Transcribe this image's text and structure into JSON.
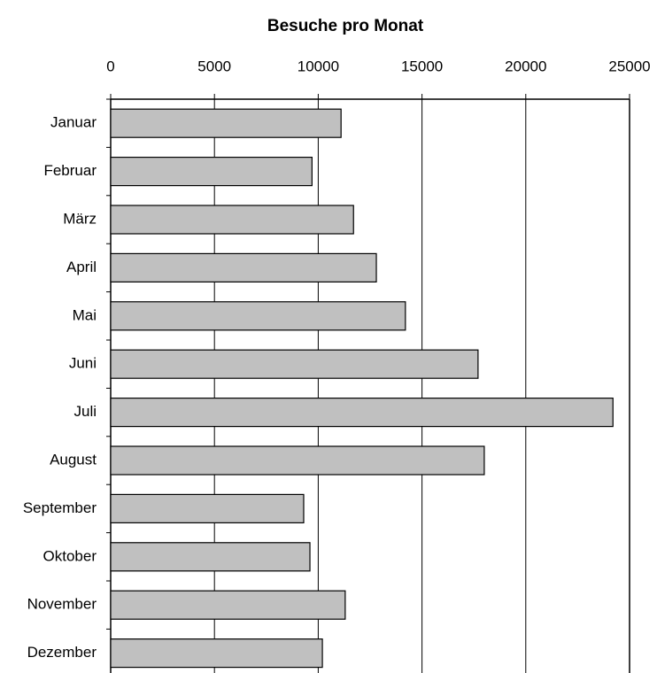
{
  "chart_data": {
    "type": "bar",
    "orientation": "horizontal",
    "title": "Besuche pro Monat",
    "categories": [
      "Januar",
      "Februar",
      "März",
      "April",
      "Mai",
      "Juni",
      "Juli",
      "August",
      "September",
      "Oktober",
      "November",
      "Dezember"
    ],
    "values": [
      11100,
      9700,
      11700,
      12800,
      14200,
      17700,
      24200,
      18000,
      9300,
      9600,
      11300,
      10200
    ],
    "color": "#c0c0c0",
    "xlim": [
      0,
      25000
    ],
    "xticks": [
      0,
      5000,
      10000,
      15000,
      20000,
      25000
    ],
    "grid": true
  }
}
